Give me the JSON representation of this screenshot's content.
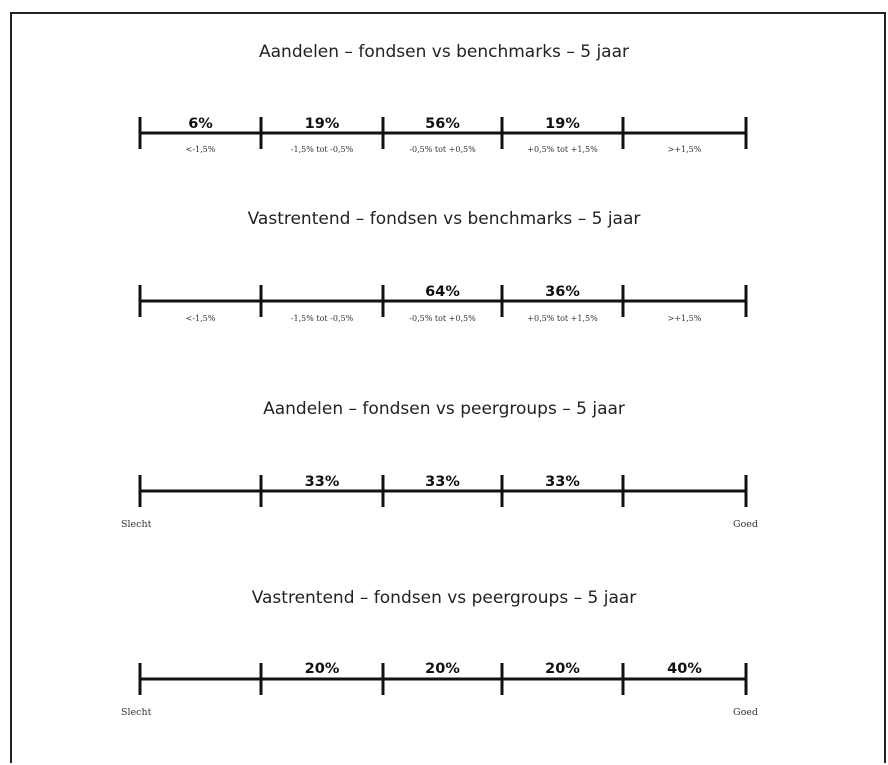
{
  "chart_data": [
    {
      "type": "bar",
      "title": "Aandelen – fondsen vs benchmarks – 5 jaar",
      "categories": [
        "<-1,5%",
        "-1,5% tot -0,5%",
        "-0,5% tot +0,5%",
        "+0,5% tot +1,5%",
        ">+1,5%"
      ],
      "labels": [
        "6%",
        "19%",
        "56%",
        "19%",
        ""
      ],
      "values": [
        6,
        19,
        56,
        19,
        0
      ],
      "end_labels": [
        "",
        ""
      ]
    },
    {
      "type": "bar",
      "title": "Vastrentend – fondsen vs benchmarks – 5 jaar",
      "categories": [
        "<-1,5%",
        "-1,5% tot -0,5%",
        "-0,5% tot +0,5%",
        "+0,5% tot +1,5%",
        ">+1,5%"
      ],
      "labels": [
        "",
        "",
        "64%",
        "36%",
        ""
      ],
      "values": [
        0,
        0,
        64,
        36,
        0
      ],
      "end_labels": [
        "",
        ""
      ]
    },
    {
      "type": "bar",
      "title": "Aandelen – fondsen vs peergroups – 5 jaar",
      "categories": [
        "",
        "",
        "",
        "",
        ""
      ],
      "labels": [
        "",
        "33%",
        "33%",
        "33%",
        ""
      ],
      "values": [
        0,
        33,
        33,
        33,
        0
      ],
      "end_labels": [
        "Slecht",
        "Goed"
      ]
    },
    {
      "type": "bar",
      "title": "Vastrentend – fondsen vs peergroups – 5 jaar",
      "categories": [
        "",
        "",
        "",
        "",
        ""
      ],
      "labels": [
        "",
        "20%",
        "20%",
        "20%",
        "40%"
      ],
      "values": [
        0,
        20,
        20,
        20,
        40
      ],
      "end_labels": [
        "Slecht",
        "Goed"
      ]
    }
  ]
}
